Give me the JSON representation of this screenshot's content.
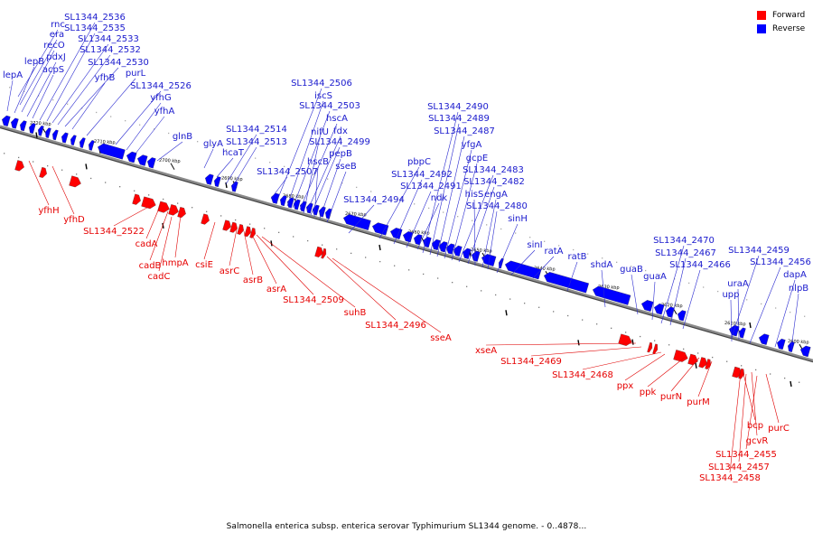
{
  "colors": {
    "forward": "#ff0000",
    "reverse": "#0000ff",
    "forward_text": "#e60000",
    "reverse_text": "#1a1acd",
    "axis": "#888888"
  },
  "legend": {
    "forward": "Forward",
    "reverse": "Reverse"
  },
  "caption": "Salmonella enterica subsp. enterica serovar Typhimurium SL1344 genome. - 0..4878...",
  "kbp_ticks": [
    "2720 kbp",
    "2710 kbp",
    "2700 kbp",
    "2690 kbp",
    "2680 kbp",
    "2670 kbp",
    "2660 kbp",
    "2650 kbp",
    "2640 kbp",
    "2630 kbp",
    "2620 kbp",
    "2610 kbp",
    "2600 kbp"
  ],
  "reverse_genes": [
    "rnc",
    "era",
    "recO",
    "pdxJ",
    "acpS",
    "lepB",
    "lepA",
    "SL1344_2536",
    "SL1344_2535",
    "SL1344_2533",
    "SL1344_2532",
    "SL1344_2530",
    "yfhB",
    "purL",
    "SL1344_2526",
    "yfhG",
    "yfhA",
    "glnB",
    "glyA",
    "hcaT",
    "SL1344_2514",
    "SL1344_2513",
    "SL1344_2507",
    "SL1344_2506",
    "iscS",
    "SL1344_2503",
    "hscA",
    "fdx",
    "nifU",
    "SL1344_2499",
    "hscB",
    "pepB",
    "sseB",
    "SL1344_2494",
    "pbpC",
    "SL1344_2492",
    "SL1344_2491",
    "ndk",
    "SL1344_2490",
    "SL1344_2489",
    "SL1344_2487",
    "yfgA",
    "gcpE",
    "SL1344_2483",
    "SL1344_2482",
    "hisS",
    "engA",
    "SL1344_2480",
    "sinH",
    "sinI",
    "ratA",
    "ratB",
    "shdA",
    "guaB",
    "guaA",
    "SL1344_2470",
    "SL1344_2467",
    "SL1344_2466",
    "SL1344_2459",
    "SL1344_2456",
    "uraA",
    "upp",
    "dapA",
    "nlpB"
  ],
  "forward_genes": [
    "yfhH",
    "yfhD",
    "SL1344_2522",
    "cadA",
    "cadB",
    "hmpA",
    "cadC",
    "csiE",
    "asrC",
    "asrB",
    "asrA",
    "SL1344_2509",
    "suhB",
    "SL1344_2496",
    "sseA",
    "xseA",
    "SL1344_2469",
    "SL1344_2468",
    "ppx",
    "ppk",
    "purN",
    "purM",
    "bcp",
    "gcvR",
    "purC",
    "SL1344_2455",
    "SL1344_2457",
    "SL1344_2458"
  ]
}
